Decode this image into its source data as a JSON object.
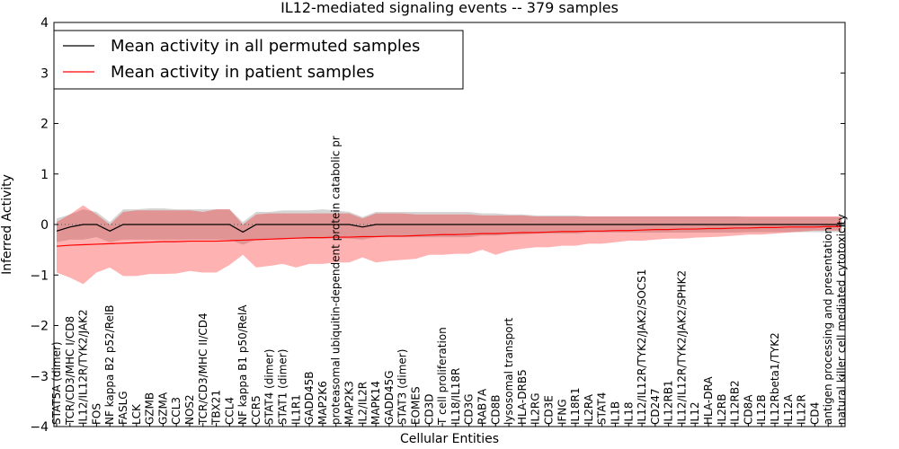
{
  "chart_data": {
    "type": "line",
    "title": "IL12-mediated signaling events -- 379 samples",
    "xlabel": "Cellular Entities",
    "ylabel": "Inferred Activity",
    "ylim": [
      -4,
      4
    ],
    "yticks": [
      -4,
      -3,
      -2,
      -1,
      0,
      1,
      2,
      3,
      4
    ],
    "ytick_labels": [
      "−4",
      "−3",
      "−2",
      "−1",
      "0",
      "1",
      "2",
      "3",
      "4"
    ],
    "legend_position": "top-left",
    "categories": [
      "STAT5A (dimer)",
      "TCR/CD3/MHC I/CD8",
      "IL12/IL12R/TYK2/JAK2",
      "FOS",
      "NF kappa B2 p52/RelB",
      "FASLG",
      "LCK",
      "GZMB",
      "GZMA",
      "CCL3",
      "NOS2",
      "TCR/CD3/MHC II/CD4",
      "TBX21",
      "CCL4",
      "NF kappa B1 p50/RelA",
      "CCR5",
      "STAT4 (dimer)",
      "STAT1 (dimer)",
      "IL1R1",
      "GADD45B",
      "MAP2K6",
      "proteasomal ubiquitin-dependent protein catabolic pr",
      "MAP2K3",
      "IL2/IL2R",
      "MAPK14",
      "GADD45G",
      "STAT3 (dimer)",
      "EOMES",
      "CD3D",
      "T cell proliferation",
      "IL18/IL18R",
      "CD3G",
      "RAB7A",
      "CD8B",
      "lysosomal transport",
      "HLA-DRB5",
      "IL2RG",
      "CD3E",
      "IFNG",
      "IL18R1",
      "IL2RA",
      "STAT4",
      "IL1B",
      "IL18",
      "IL12/IL12R/TYK2/JAK2/SOCS1",
      "CD247",
      "IL12RB1",
      "IL12/IL12R/TYK2/JAK2/SPHK2",
      "IL12",
      "HLA-DRA",
      "IL2RB",
      "IL12RB2",
      "CD8A",
      "IL12B",
      "IL12Rbeta1/TYK2",
      "IL12A",
      "IL12R",
      "CD4",
      "antigen processing and presentation",
      "natural killer cell mediated cytotoxicity"
    ],
    "series": [
      {
        "name": "Mean activity in all permuted samples",
        "color": "#000000",
        "values": [
          -0.13,
          -0.05,
          0.0,
          0.0,
          -0.13,
          0.0,
          0.0,
          0.0,
          0.0,
          0.0,
          0.0,
          0.0,
          0.0,
          0.0,
          -0.15,
          0.0,
          0.0,
          0.0,
          0.0,
          0.0,
          0.0,
          0.0,
          0.0,
          -0.05,
          0.0,
          0.0,
          0.0,
          0.0,
          0.0,
          0.0,
          0.0,
          0.0,
          0.0,
          0.0,
          0.0,
          0.0,
          0.0,
          0.0,
          0.0,
          0.0,
          0.0,
          0.0,
          0.0,
          0.0,
          0.0,
          0.0,
          0.0,
          0.0,
          0.0,
          0.0,
          0.0,
          0.0,
          0.0,
          0.0,
          0.0,
          0.0,
          0.0,
          0.0,
          0.0,
          0.0
        ],
        "band_upper": [
          0.12,
          0.2,
          0.3,
          0.25,
          0.05,
          0.3,
          0.3,
          0.32,
          0.32,
          0.3,
          0.3,
          0.3,
          0.3,
          0.3,
          0.05,
          0.25,
          0.25,
          0.28,
          0.28,
          0.28,
          0.3,
          0.28,
          0.25,
          0.15,
          0.25,
          0.25,
          0.25,
          0.25,
          0.25,
          0.25,
          0.25,
          0.25,
          0.22,
          0.22,
          0.2,
          0.2,
          0.18,
          0.18,
          0.18,
          0.18,
          0.16,
          0.16,
          0.16,
          0.16,
          0.16,
          0.16,
          0.16,
          0.16,
          0.16,
          0.16,
          0.16,
          0.16,
          0.15,
          0.15,
          0.15,
          0.15,
          0.15,
          0.15,
          0.15,
          0.15
        ],
        "band_lower": [
          -0.35,
          -0.3,
          -0.3,
          -0.25,
          -0.35,
          -0.3,
          -0.3,
          -0.3,
          -0.3,
          -0.3,
          -0.3,
          -0.3,
          -0.3,
          -0.3,
          -0.4,
          -0.3,
          -0.28,
          -0.28,
          -0.28,
          -0.28,
          -0.28,
          -0.28,
          -0.28,
          -0.3,
          -0.25,
          -0.25,
          -0.25,
          -0.25,
          -0.25,
          -0.25,
          -0.25,
          -0.25,
          -0.22,
          -0.22,
          -0.2,
          -0.2,
          -0.18,
          -0.18,
          -0.18,
          -0.18,
          -0.16,
          -0.16,
          -0.16,
          -0.16,
          -0.16,
          -0.16,
          -0.16,
          -0.16,
          -0.16,
          -0.16,
          -0.16,
          -0.16,
          -0.15,
          -0.15,
          -0.15,
          -0.15,
          -0.15,
          -0.15,
          -0.15,
          -0.15
        ]
      },
      {
        "name": "Mean activity in patient samples",
        "color": "#ff0000",
        "values": [
          -0.43,
          -0.41,
          -0.4,
          -0.39,
          -0.38,
          -0.37,
          -0.36,
          -0.35,
          -0.34,
          -0.34,
          -0.33,
          -0.33,
          -0.33,
          -0.32,
          -0.31,
          -0.3,
          -0.29,
          -0.28,
          -0.27,
          -0.26,
          -0.26,
          -0.25,
          -0.25,
          -0.24,
          -0.24,
          -0.23,
          -0.23,
          -0.22,
          -0.21,
          -0.2,
          -0.2,
          -0.19,
          -0.18,
          -0.18,
          -0.17,
          -0.16,
          -0.16,
          -0.15,
          -0.14,
          -0.14,
          -0.13,
          -0.13,
          -0.12,
          -0.12,
          -0.11,
          -0.1,
          -0.1,
          -0.09,
          -0.09,
          -0.08,
          -0.08,
          -0.07,
          -0.07,
          -0.06,
          -0.06,
          -0.05,
          -0.05,
          -0.05,
          -0.04,
          -0.04
        ],
        "band_upper": [
          0.05,
          0.2,
          0.38,
          0.2,
          0.0,
          0.25,
          0.28,
          0.28,
          0.28,
          0.28,
          0.28,
          0.25,
          0.3,
          0.3,
          0.0,
          0.2,
          0.22,
          0.22,
          0.22,
          0.22,
          0.22,
          0.22,
          0.22,
          0.12,
          0.22,
          0.22,
          0.22,
          0.2,
          0.2,
          0.2,
          0.2,
          0.2,
          0.18,
          0.18,
          0.18,
          0.18,
          0.16,
          0.16,
          0.16,
          0.16,
          0.16,
          0.16,
          0.16,
          0.16,
          0.16,
          0.16,
          0.16,
          0.16,
          0.16,
          0.16,
          0.16,
          0.16,
          0.16,
          0.16,
          0.16,
          0.16,
          0.16,
          0.16,
          0.16,
          0.16
        ],
        "band_lower": [
          -0.95,
          -1.05,
          -1.18,
          -0.95,
          -0.85,
          -1.02,
          -1.02,
          -0.98,
          -0.98,
          -0.97,
          -0.92,
          -0.95,
          -0.95,
          -0.8,
          -0.6,
          -0.85,
          -0.82,
          -0.78,
          -0.85,
          -0.78,
          -0.78,
          -0.75,
          -0.75,
          -0.65,
          -0.75,
          -0.72,
          -0.7,
          -0.68,
          -0.6,
          -0.6,
          -0.58,
          -0.58,
          -0.5,
          -0.6,
          -0.52,
          -0.48,
          -0.45,
          -0.45,
          -0.42,
          -0.42,
          -0.38,
          -0.38,
          -0.35,
          -0.32,
          -0.32,
          -0.3,
          -0.28,
          -0.28,
          -0.26,
          -0.25,
          -0.24,
          -0.22,
          -0.2,
          -0.2,
          -0.18,
          -0.16,
          -0.14,
          -0.12,
          -0.12,
          -0.12
        ]
      }
    ]
  }
}
